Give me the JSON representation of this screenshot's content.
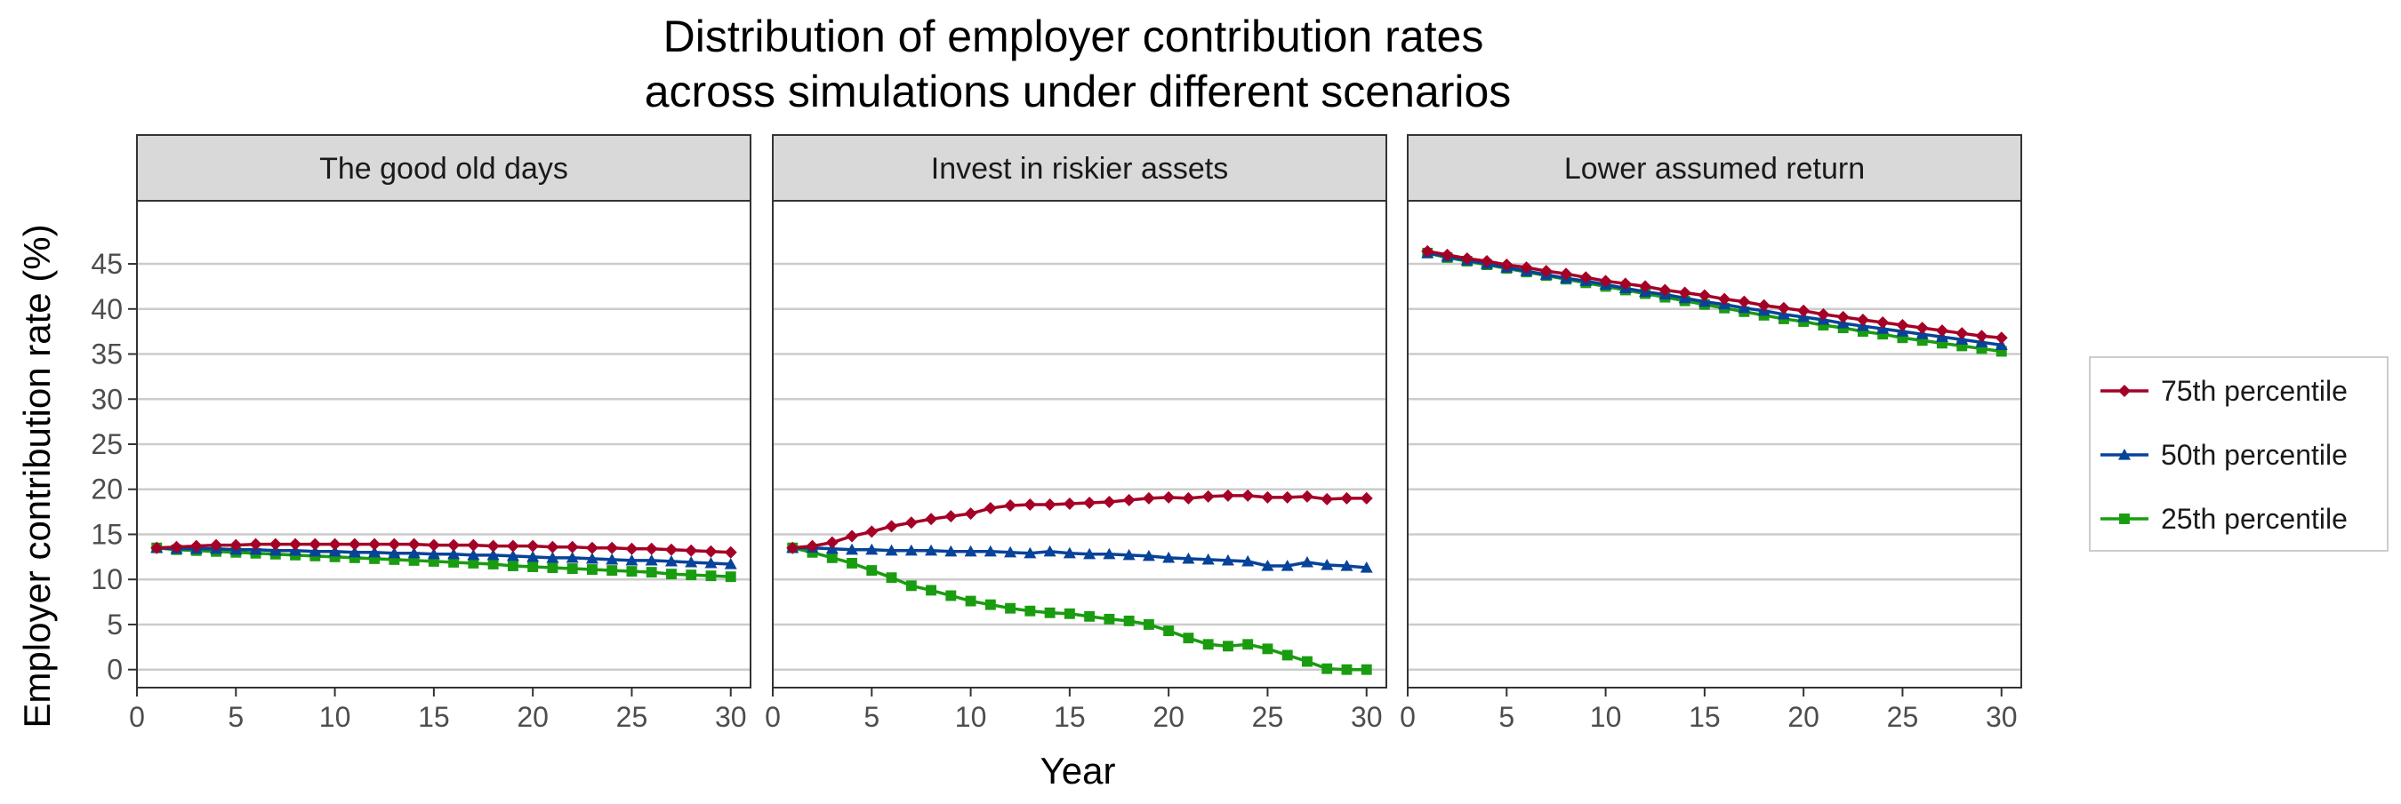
{
  "chart_data": {
    "type": "line",
    "title_lines": [
      "Distribution of employer contribution rates",
      "across simulations under different scenarios"
    ],
    "xlabel": "Year",
    "ylabel": "Employer contribution rate (%)",
    "xlim": [
      0,
      31
    ],
    "ylim": [
      -2,
      52
    ],
    "xticks": [
      0,
      5,
      10,
      15,
      20,
      25,
      30
    ],
    "yticks": [
      0,
      5,
      10,
      15,
      20,
      25,
      30,
      35,
      40,
      45
    ],
    "grid": "horizontal major lines",
    "legend_position": "right",
    "legend": [
      {
        "label": "75th percentile",
        "color": "#a50026",
        "marker": "diamond"
      },
      {
        "label": "50th percentile",
        "color": "#08439a",
        "marker": "triangle"
      },
      {
        "label": "25th percentile",
        "color": "#1a9c10",
        "marker": "square"
      }
    ],
    "x": [
      1,
      2,
      3,
      4,
      5,
      6,
      7,
      8,
      9,
      10,
      11,
      12,
      13,
      14,
      15,
      16,
      17,
      18,
      19,
      20,
      21,
      22,
      23,
      24,
      25,
      26,
      27,
      28,
      29,
      30
    ],
    "panels": [
      {
        "title": "The good old days",
        "series": [
          {
            "name": "75th percentile",
            "values": [
              13.5,
              13.6,
              13.7,
              13.8,
              13.8,
              13.9,
              13.9,
              13.9,
              13.9,
              13.9,
              13.9,
              13.9,
              13.9,
              13.9,
              13.8,
              13.8,
              13.8,
              13.7,
              13.7,
              13.7,
              13.6,
              13.6,
              13.5,
              13.5,
              13.4,
              13.4,
              13.3,
              13.2,
              13.1,
              13.0
            ]
          },
          {
            "name": "50th percentile",
            "values": [
              13.5,
              13.4,
              13.4,
              13.4,
              13.3,
              13.3,
              13.2,
              13.2,
              13.1,
              13.1,
              13.0,
              13.0,
              12.9,
              12.9,
              12.8,
              12.8,
              12.7,
              12.7,
              12.6,
              12.5,
              12.4,
              12.4,
              12.3,
              12.2,
              12.1,
              12.1,
              12.0,
              11.9,
              11.8,
              11.7
            ]
          },
          {
            "name": "25th percentile",
            "values": [
              13.5,
              13.3,
              13.2,
              13.1,
              13.0,
              12.9,
              12.8,
              12.7,
              12.6,
              12.5,
              12.4,
              12.3,
              12.2,
              12.1,
              12.0,
              11.9,
              11.8,
              11.7,
              11.5,
              11.4,
              11.3,
              11.2,
              11.1,
              11.0,
              10.9,
              10.8,
              10.6,
              10.5,
              10.4,
              10.3
            ]
          }
        ]
      },
      {
        "title": "Invest in riskier assets",
        "series": [
          {
            "name": "75th percentile",
            "values": [
              13.5,
              13.7,
              14.1,
              14.8,
              15.3,
              15.9,
              16.3,
              16.7,
              17.0,
              17.3,
              17.9,
              18.2,
              18.3,
              18.3,
              18.4,
              18.5,
              18.6,
              18.8,
              19.0,
              19.1,
              19.0,
              19.2,
              19.3,
              19.3,
              19.1,
              19.1,
              19.2,
              18.9,
              19.0,
              19.0
            ]
          },
          {
            "name": "50th percentile",
            "values": [
              13.5,
              13.5,
              13.4,
              13.3,
              13.3,
              13.2,
              13.2,
              13.2,
              13.1,
              13.1,
              13.1,
              13.0,
              12.9,
              13.1,
              12.9,
              12.8,
              12.8,
              12.7,
              12.6,
              12.4,
              12.3,
              12.2,
              12.1,
              12.0,
              11.5,
              11.5,
              11.9,
              11.6,
              11.5,
              11.3
            ]
          },
          {
            "name": "25th percentile",
            "values": [
              13.5,
              13.0,
              12.4,
              11.8,
              11.0,
              10.2,
              9.3,
              8.8,
              8.2,
              7.6,
              7.2,
              6.8,
              6.5,
              6.3,
              6.2,
              5.9,
              5.6,
              5.4,
              5.0,
              4.3,
              3.5,
              2.8,
              2.6,
              2.8,
              2.3,
              1.6,
              0.9,
              0.1,
              0.0,
              0.0
            ]
          }
        ]
      },
      {
        "title": "Lower assumed return",
        "series": [
          {
            "name": "75th percentile",
            "values": [
              46.4,
              46.0,
              45.6,
              45.3,
              44.9,
              44.6,
              44.2,
              43.9,
              43.5,
              43.1,
              42.8,
              42.5,
              42.1,
              41.8,
              41.5,
              41.1,
              40.8,
              40.4,
              40.1,
              39.8,
              39.4,
              39.1,
              38.8,
              38.5,
              38.2,
              37.9,
              37.6,
              37.3,
              37.0,
              36.8
            ]
          },
          {
            "name": "50th percentile",
            "values": [
              46.2,
              45.8,
              45.4,
              45.0,
              44.6,
              44.2,
              43.8,
              43.4,
              43.1,
              42.7,
              42.3,
              41.9,
              41.6,
              41.2,
              40.8,
              40.5,
              40.1,
              39.8,
              39.4,
              39.1,
              38.8,
              38.4,
              38.1,
              37.8,
              37.5,
              37.2,
              36.9,
              36.6,
              36.3,
              36.0
            ]
          },
          {
            "name": "25th percentile",
            "values": [
              46.2,
              45.7,
              45.3,
              44.9,
              44.5,
              44.1,
              43.7,
              43.3,
              42.9,
              42.5,
              42.1,
              41.7,
              41.3,
              40.9,
              40.5,
              40.1,
              39.7,
              39.3,
              38.9,
              38.6,
              38.2,
              37.9,
              37.5,
              37.2,
              36.8,
              36.5,
              36.2,
              35.9,
              35.6,
              35.3
            ]
          }
        ]
      }
    ]
  }
}
